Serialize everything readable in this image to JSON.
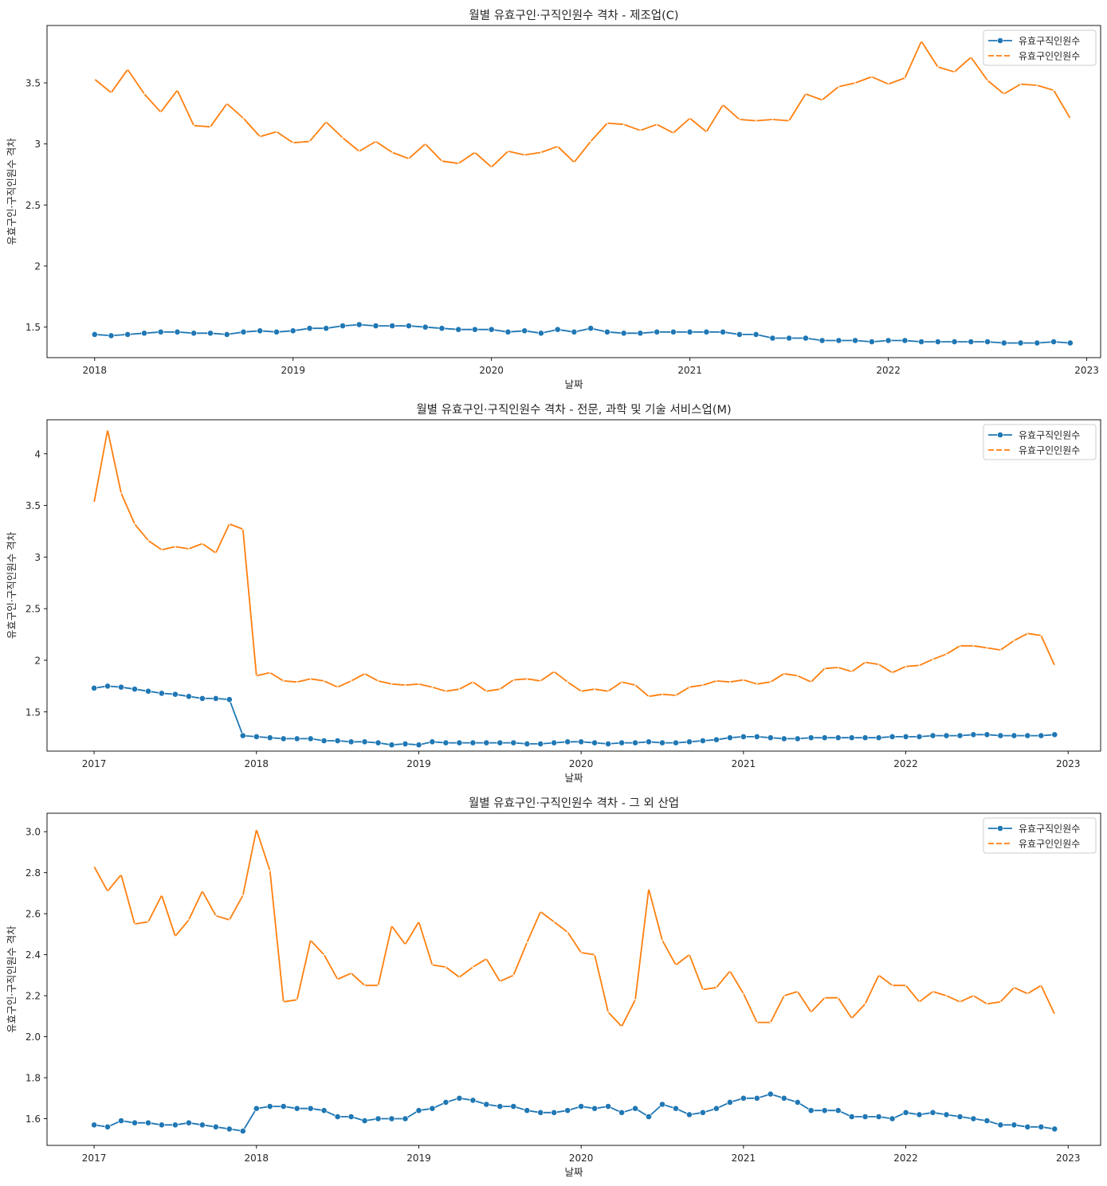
{
  "chart_data": [
    {
      "type": "line",
      "title": "월별 유효구인·구직인원수 격차 - 제조업(C)",
      "xlabel": "날짜",
      "ylabel": "유효구인·구직인원수 격차",
      "x_start": {
        "year": 2018,
        "month": 1
      },
      "xlim": [
        2017.76,
        2023.07
      ],
      "ylim": [
        1.25,
        3.97
      ],
      "x_ticks": [
        2018,
        2019,
        2020,
        2021,
        2022,
        2023
      ],
      "y_ticks": [
        1.5,
        2.0,
        2.5,
        3.0,
        3.5
      ],
      "legend_position": "top-right",
      "series": [
        {
          "name": "유효구직인원수",
          "color": "#1f77b4",
          "marker": "circle",
          "dash": "solid",
          "values": [
            1.44,
            1.43,
            1.44,
            1.45,
            1.46,
            1.46,
            1.45,
            1.45,
            1.44,
            1.46,
            1.47,
            1.46,
            1.47,
            1.49,
            1.49,
            1.51,
            1.52,
            1.51,
            1.51,
            1.51,
            1.5,
            1.49,
            1.48,
            1.48,
            1.48,
            1.46,
            1.47,
            1.45,
            1.48,
            1.46,
            1.49,
            1.46,
            1.45,
            1.45,
            1.46,
            1.46,
            1.46,
            1.46,
            1.46,
            1.44,
            1.44,
            1.41,
            1.41,
            1.41,
            1.39,
            1.39,
            1.39,
            1.38,
            1.39,
            1.39,
            1.38,
            1.38,
            1.38,
            1.38,
            1.38,
            1.37,
            1.37,
            1.37,
            1.38,
            1.37
          ]
        },
        {
          "name": "유효구인인원수",
          "color": "#ff7f0e",
          "marker": "none",
          "dash": "dashed",
          "values": [
            3.53,
            3.42,
            3.61,
            3.41,
            3.26,
            3.44,
            3.15,
            3.14,
            3.33,
            3.21,
            3.06,
            3.1,
            3.01,
            3.02,
            3.18,
            3.05,
            2.94,
            3.02,
            2.93,
            2.88,
            3.0,
            2.86,
            2.84,
            2.93,
            2.81,
            2.94,
            2.91,
            2.93,
            2.98,
            2.85,
            3.02,
            3.17,
            3.16,
            3.11,
            3.16,
            3.09,
            3.21,
            3.1,
            3.32,
            3.2,
            3.19,
            3.2,
            3.19,
            3.41,
            3.36,
            3.47,
            3.5,
            3.55,
            3.49,
            3.54,
            3.84,
            3.63,
            3.59,
            3.71,
            3.52,
            3.41,
            3.49,
            3.48,
            3.44,
            3.21
          ]
        }
      ]
    },
    {
      "type": "line",
      "title": "월별 유효구인·구직인원수 격차 - 전문, 과학 및 기술 서비스업(M)",
      "xlabel": "날짜",
      "ylabel": "유효구인·구직인원수 격차",
      "x_start": {
        "year": 2017,
        "month": 1
      },
      "xlim": [
        2016.71,
        2023.2
      ],
      "ylim": [
        1.12,
        4.33
      ],
      "x_ticks": [
        2017,
        2018,
        2019,
        2020,
        2021,
        2022,
        2023
      ],
      "y_ticks": [
        1.5,
        2.0,
        2.5,
        3.0,
        3.5,
        4.0
      ],
      "legend_position": "top-right",
      "series": [
        {
          "name": "유효구직인원수",
          "color": "#1f77b4",
          "marker": "circle",
          "dash": "solid",
          "values": [
            1.73,
            1.75,
            1.74,
            1.72,
            1.7,
            1.68,
            1.67,
            1.65,
            1.63,
            1.63,
            1.62,
            1.27,
            1.26,
            1.25,
            1.24,
            1.24,
            1.24,
            1.22,
            1.22,
            1.21,
            1.21,
            1.2,
            1.18,
            1.19,
            1.18,
            1.21,
            1.2,
            1.2,
            1.2,
            1.2,
            1.2,
            1.2,
            1.19,
            1.19,
            1.2,
            1.21,
            1.21,
            1.2,
            1.19,
            1.2,
            1.2,
            1.21,
            1.2,
            1.2,
            1.21,
            1.22,
            1.23,
            1.25,
            1.26,
            1.26,
            1.25,
            1.24,
            1.24,
            1.25,
            1.25,
            1.25,
            1.25,
            1.25,
            1.25,
            1.26,
            1.26,
            1.26,
            1.27,
            1.27,
            1.27,
            1.28,
            1.28,
            1.27,
            1.27,
            1.27,
            1.27,
            1.28
          ]
        },
        {
          "name": "유효구인인원수",
          "color": "#ff7f0e",
          "marker": "none",
          "dash": "dashed",
          "values": [
            3.53,
            4.23,
            3.62,
            3.32,
            3.16,
            3.07,
            3.1,
            3.08,
            3.13,
            3.04,
            3.32,
            3.27,
            1.85,
            1.88,
            1.8,
            1.79,
            1.82,
            1.8,
            1.74,
            1.8,
            1.87,
            1.8,
            1.77,
            1.76,
            1.77,
            1.74,
            1.7,
            1.72,
            1.79,
            1.7,
            1.72,
            1.81,
            1.82,
            1.8,
            1.89,
            1.79,
            1.7,
            1.72,
            1.7,
            1.79,
            1.76,
            1.65,
            1.67,
            1.66,
            1.74,
            1.76,
            1.8,
            1.79,
            1.81,
            1.77,
            1.79,
            1.87,
            1.85,
            1.79,
            1.92,
            1.93,
            1.89,
            1.98,
            1.96,
            1.88,
            1.94,
            1.95,
            2.01,
            2.06,
            2.14,
            2.14,
            2.12,
            2.1,
            2.19,
            2.26,
            2.24,
            1.95
          ]
        }
      ]
    },
    {
      "type": "line",
      "title": "월별 유효구인·구직인원수 격차 - 그 외 산업",
      "xlabel": "날짜",
      "ylabel": "유효구인·구직인원수 격차",
      "x_start": {
        "year": 2017,
        "month": 1
      },
      "xlim": [
        2016.71,
        2023.2
      ],
      "ylim": [
        1.47,
        3.09
      ],
      "x_ticks": [
        2017,
        2018,
        2019,
        2020,
        2021,
        2022,
        2023
      ],
      "y_ticks": [
        1.6,
        1.8,
        2.0,
        2.2,
        2.4,
        2.6,
        2.8,
        3.0
      ],
      "legend_position": "top-right",
      "series": [
        {
          "name": "유효구직인원수",
          "color": "#1f77b4",
          "marker": "circle",
          "dash": "solid",
          "values": [
            1.57,
            1.56,
            1.59,
            1.58,
            1.58,
            1.57,
            1.57,
            1.58,
            1.57,
            1.56,
            1.55,
            1.54,
            1.65,
            1.66,
            1.66,
            1.65,
            1.65,
            1.64,
            1.61,
            1.61,
            1.59,
            1.6,
            1.6,
            1.6,
            1.64,
            1.65,
            1.68,
            1.7,
            1.69,
            1.67,
            1.66,
            1.66,
            1.64,
            1.63,
            1.63,
            1.64,
            1.66,
            1.65,
            1.66,
            1.63,
            1.65,
            1.61,
            1.67,
            1.65,
            1.62,
            1.63,
            1.65,
            1.68,
            1.7,
            1.7,
            1.72,
            1.7,
            1.68,
            1.64,
            1.64,
            1.64,
            1.61,
            1.61,
            1.61,
            1.6,
            1.63,
            1.62,
            1.63,
            1.62,
            1.61,
            1.6,
            1.59,
            1.57,
            1.57,
            1.56,
            1.56,
            1.55
          ]
        },
        {
          "name": "유효구인인원수",
          "color": "#ff7f0e",
          "marker": "none",
          "dash": "dashed",
          "values": [
            2.83,
            2.71,
            2.79,
            2.55,
            2.56,
            2.69,
            2.49,
            2.57,
            2.71,
            2.59,
            2.57,
            2.69,
            3.01,
            2.81,
            2.17,
            2.18,
            2.47,
            2.4,
            2.28,
            2.31,
            2.25,
            2.25,
            2.54,
            2.45,
            2.56,
            2.35,
            2.34,
            2.29,
            2.34,
            2.38,
            2.27,
            2.3,
            2.46,
            2.61,
            2.56,
            2.51,
            2.41,
            2.4,
            2.12,
            2.05,
            2.18,
            2.72,
            2.47,
            2.35,
            2.4,
            2.23,
            2.24,
            2.32,
            2.21,
            2.07,
            2.07,
            2.2,
            2.22,
            2.12,
            2.19,
            2.19,
            2.09,
            2.16,
            2.3,
            2.25,
            2.25,
            2.17,
            2.22,
            2.2,
            2.17,
            2.2,
            2.16,
            2.17,
            2.24,
            2.21,
            2.25,
            2.11
          ]
        }
      ]
    }
  ]
}
